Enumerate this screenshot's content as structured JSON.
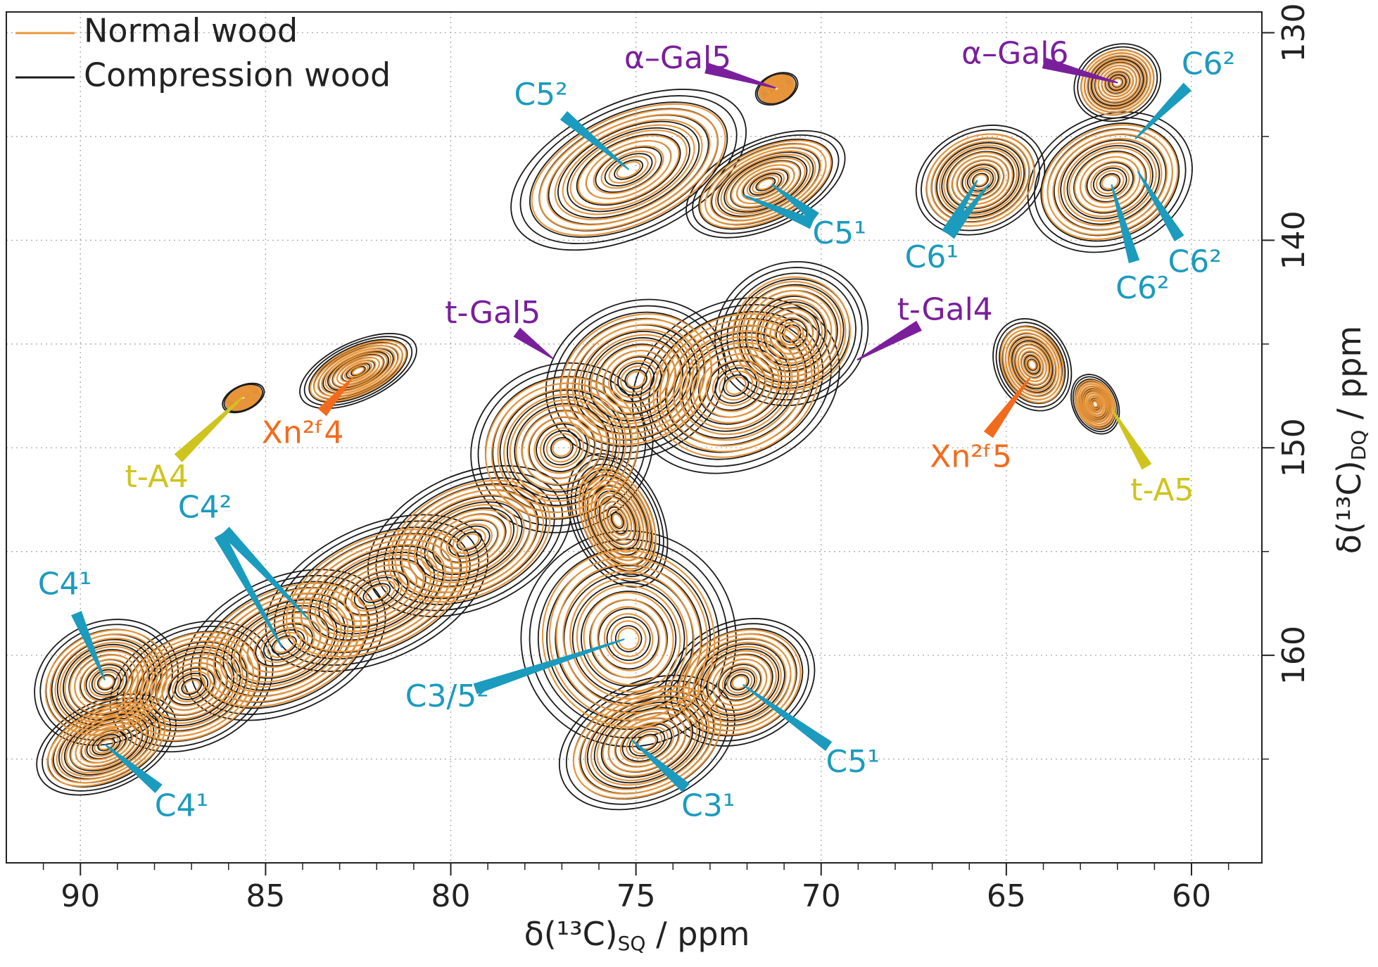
{
  "chart_data": {
    "type": "contour",
    "x_label": [
      "δ(¹³C)",
      "SQ",
      " / ppm"
    ],
    "y_label": [
      "δ(¹³C)",
      "DQ",
      " / ppm"
    ],
    "xlim": [
      92,
      58.1
    ],
    "ylim": [
      129,
      170
    ],
    "xticks": [
      90,
      85,
      80,
      75,
      70,
      65,
      60
    ],
    "xminor": [
      91,
      89,
      88,
      87,
      86,
      84,
      83,
      82,
      81,
      79,
      78,
      77,
      76,
      74,
      73,
      72,
      71,
      69,
      68,
      67,
      66,
      64,
      63,
      62,
      61,
      59
    ],
    "yticks": [
      130,
      140,
      150,
      160
    ],
    "yminor": [
      135,
      145,
      155,
      165
    ],
    "grid": true,
    "legend": "upper left",
    "series": [
      {
        "name": "Compression wood",
        "color": "#1a1a1a",
        "x": [
          89.3,
          89.3,
          87.0,
          84.5,
          82.0,
          79.5,
          77.0,
          75.0,
          72.3,
          70.8,
          82.5,
          85.6,
          75.2,
          71.5,
          71.2,
          62.0,
          65.7,
          62.2,
          64.3,
          62.6,
          75.2,
          72.2,
          74.7,
          75.5
        ],
        "y": [
          161.3,
          164.3,
          161.5,
          159.5,
          157.0,
          154.5,
          150.0,
          146.7,
          147.0,
          144.5,
          146.3,
          147.6,
          136.6,
          137.3,
          132.7,
          132.4,
          137.1,
          137.2,
          146.0,
          147.9,
          159.2,
          161.3,
          164.2,
          153.5
        ],
        "x_width": [
          2.0,
          2.0,
          2.3,
          2.9,
          3.2,
          2.9,
          2.5,
          2.5,
          2.9,
          2.1,
          1.7,
          0.6,
          3.4,
          2.3,
          0.6,
          1.2,
          1.8,
          2.3,
          1.0,
          0.6,
          2.9,
          2.1,
          2.5,
          1.2
        ],
        "y_width": [
          2.9,
          2.1,
          2.9,
          3.2,
          3.2,
          3.2,
          4.0,
          3.7,
          4.0,
          3.4,
          1.4,
          0.6,
          3.2,
          2.1,
          0.7,
          1.8,
          2.5,
          3.2,
          2.3,
          1.5,
          5.2,
          2.9,
          2.9,
          3.4
        ]
      },
      {
        "name": "Normal wood",
        "color": "#e8953a",
        "x": [
          89.3,
          89.3,
          87.0,
          84.5,
          82.0,
          79.5,
          77.0,
          75.0,
          72.3,
          70.8,
          82.5,
          85.6,
          75.2,
          71.5,
          71.2,
          62.0,
          65.7,
          62.2,
          64.3,
          62.6,
          75.2,
          72.2,
          74.7,
          75.5
        ],
        "y": [
          161.3,
          164.3,
          161.5,
          159.5,
          157.0,
          154.5,
          150.0,
          146.7,
          147.0,
          144.5,
          146.3,
          147.6,
          136.6,
          137.3,
          132.7,
          132.4,
          137.1,
          137.2,
          146.0,
          147.9,
          159.2,
          161.3,
          164.2,
          153.5
        ],
        "x_width": [
          1.7,
          1.7,
          1.9,
          2.4,
          2.6,
          2.3,
          2.1,
          2.1,
          2.3,
          1.6,
          1.4,
          0.5,
          2.8,
          1.9,
          0.5,
          1.0,
          1.5,
          1.9,
          0.8,
          0.5,
          2.3,
          1.7,
          2.1,
          0.9
        ],
        "y_width": [
          2.4,
          1.7,
          2.4,
          2.6,
          2.6,
          2.6,
          3.3,
          3.0,
          3.3,
          2.7,
          1.1,
          0.5,
          2.6,
          1.7,
          0.6,
          1.5,
          2.1,
          2.6,
          1.9,
          1.2,
          4.3,
          2.4,
          2.4,
          2.7
        ]
      }
    ],
    "annotations": [
      {
        "text": "α–Gal5",
        "color": "#7a1f9c",
        "points": [
          [
            71.23,
            132.66
          ]
        ]
      },
      {
        "text": "α–Gal6",
        "color": "#7a1f9c",
        "points": [
          [
            61.99,
            132.41
          ]
        ]
      },
      {
        "text": "C5²",
        "color": "#1b9bbd",
        "points": [
          [
            75.19,
            136.6
          ]
        ]
      },
      {
        "text": "C5¹",
        "color": "#1b9bbd",
        "points": [
          [
            72.11,
            137.82
          ],
          [
            71.33,
            137.31
          ]
        ]
      },
      {
        "text": "C6²",
        "color": "#1b9bbd",
        "points": [
          [
            61.52,
            135.12
          ]
        ]
      },
      {
        "text": "C6¹",
        "color": "#1b9bbd",
        "points": [
          [
            65.78,
            137.1
          ],
          [
            65.47,
            137.3
          ]
        ]
      },
      {
        "text": "C6²",
        "color": "#1b9bbd",
        "points": [
          [
            62.16,
            137.31
          ]
        ]
      },
      {
        "text": "C6²",
        "color": "#1b9bbd",
        "points": [
          [
            61.45,
            136.68
          ]
        ]
      },
      {
        "text": "t-Gal5",
        "color": "#7a1f9c",
        "points": [
          [
            77.25,
            145.69
          ]
        ]
      },
      {
        "text": "t-Gal4",
        "color": "#7a1f9c",
        "points": [
          [
            69.03,
            145.77
          ]
        ]
      },
      {
        "text": "Xn²ᶠ4",
        "color": "#f26b1d",
        "points": [
          [
            82.65,
            146.62
          ]
        ]
      },
      {
        "text": "t-A4",
        "color": "#cfc41e",
        "points": [
          [
            85.62,
            147.55
          ]
        ]
      },
      {
        "text": "Xn²ᶠ5",
        "color": "#f26b1d",
        "points": [
          [
            64.36,
            146.62
          ]
        ]
      },
      {
        "text": "t-A5",
        "color": "#cfc41e",
        "points": [
          [
            62.16,
            148.1
          ]
        ]
      },
      {
        "text": "C4²",
        "color": "#1b9bbd",
        "points": [
          [
            84.55,
            159.64
          ],
          [
            83.84,
            158.25
          ]
        ]
      },
      {
        "text": "C4¹",
        "color": "#1b9bbd",
        "points": [
          [
            89.34,
            161.2
          ]
        ]
      },
      {
        "text": "C4¹",
        "color": "#1b9bbd",
        "points": [
          [
            89.34,
            164.29
          ]
        ]
      },
      {
        "text": "C3/5²",
        "color": "#1b9bbd",
        "points": [
          [
            75.31,
            159.22
          ]
        ]
      },
      {
        "text": "C5¹",
        "color": "#1b9bbd",
        "points": [
          [
            72.11,
            161.42
          ]
        ]
      },
      {
        "text": "C3¹",
        "color": "#1b9bbd",
        "points": [
          [
            75.12,
            164.08
          ]
        ]
      }
    ]
  }
}
